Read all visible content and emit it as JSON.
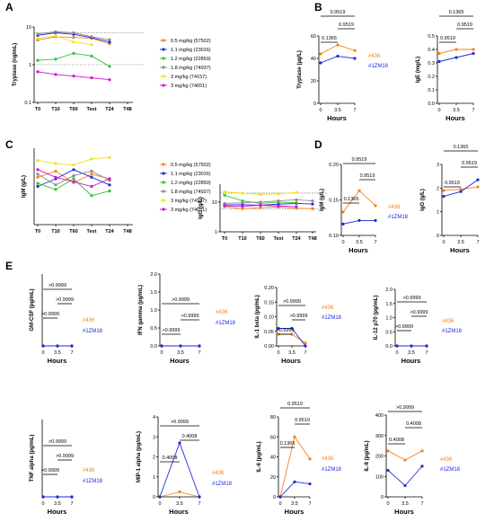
{
  "panel_labels": [
    "A",
    "B",
    "C",
    "D",
    "E"
  ],
  "colors": {
    "s57502": "#f5821f",
    "s23016": "#1f2bd6",
    "s22850": "#2ec42e",
    "s74937": "#8c8c8c",
    "s74157": "#f2e21b",
    "s74651": "#d60fd6",
    "s436": "#f5821f",
    "s1ZM18": "#1f2bd6"
  },
  "chart_data": [
    {
      "id": "A",
      "type": "line",
      "ylabel": "Tryptase (ng/mL)",
      "yscale": "log",
      "yticks": [
        "0.1",
        "1",
        "10"
      ],
      "ylim": [
        0.1,
        10
      ],
      "categories": [
        "T0",
        "T10",
        "T60",
        "Text",
        "T24",
        "T48"
      ],
      "series": [
        {
          "name": "0.5 mg/kg (57502)",
          "color": "#f5821f",
          "values": [
            4.5,
            5.5,
            5.3,
            5.0,
            3.6,
            null
          ]
        },
        {
          "name": "1.1 mg/kg (23016)",
          "color": "#1f2bd6",
          "values": [
            6.0,
            7.0,
            6.4,
            5.2,
            4.0,
            null
          ]
        },
        {
          "name": "1.2 mg/kg (22850)",
          "color": "#2ec42e",
          "values": [
            1.3,
            1.4,
            2.0,
            1.7,
            0.9,
            null
          ]
        },
        {
          "name": "1.8 mg/kg (74937)",
          "color": "#8c8c8c",
          "values": [
            6.5,
            7.5,
            7.0,
            5.5,
            4.6,
            null
          ]
        },
        {
          "name": "3 mg/kg (74157)",
          "color": "#f2e21b",
          "values": [
            5.0,
            5.8,
            4.0,
            3.4,
            null,
            null
          ]
        },
        {
          "name": "3 mg/kg (74651)",
          "color": "#d60fd6",
          "values": [
            0.65,
            0.55,
            0.5,
            0.45,
            0.4,
            null
          ]
        }
      ],
      "reflines": [
        1,
        7
      ],
      "legend": [
        {
          "label": "0.5 mg/kg (57502)",
          "color": "#f5821f"
        },
        {
          "label": "1.1 mg/kg (23016)",
          "color": "#1f2bd6"
        },
        {
          "label": "1.2 mg/kg (22850)",
          "color": "#2ec42e"
        },
        {
          "label": "1.8 mg/kg (74937)",
          "color": "#8c8c8c"
        },
        {
          "label": "3 mg/kg (74157)",
          "color": "#f2e21b"
        },
        {
          "label": "3 mg/kg (74651)",
          "color": "#d60fd6"
        }
      ]
    },
    {
      "id": "B1",
      "type": "line",
      "ylabel": "Tryptase (µg/L)",
      "xlabel": "Hours",
      "categories": [
        "0",
        "3.5",
        "7"
      ],
      "yticks": [
        "0",
        "20",
        "40",
        "60"
      ],
      "ylim": [
        0,
        60
      ],
      "series": [
        {
          "name": "#436",
          "color": "#f5821f",
          "values": [
            44,
            52,
            47
          ]
        },
        {
          "name": "#1ZM18",
          "color": "#1f2bd6",
          "values": [
            36,
            42,
            40
          ]
        }
      ],
      "brackets": [
        {
          "label": "0.9519",
          "from": 0,
          "to": 2
        },
        {
          "label": "0.9519",
          "from": 1,
          "to": 2
        },
        {
          "label": "0.1365",
          "from": 0,
          "to": 1
        }
      ],
      "legend": [
        {
          "label": "#436",
          "color": "#f5821f"
        },
        {
          "label": "#1ZM18",
          "color": "#1f2bd6"
        }
      ]
    },
    {
      "id": "B2",
      "type": "line",
      "ylabel": "IgE (mg/L)",
      "xlabel": "Hours",
      "categories": [
        "0",
        "3.5",
        "7"
      ],
      "yticks": [
        "0.0",
        "0.1",
        "0.2",
        "0.3",
        "0.4",
        "0.5"
      ],
      "ylim": [
        0,
        0.5
      ],
      "series": [
        {
          "name": "#436",
          "color": "#f5821f",
          "values": [
            0.37,
            0.4,
            0.4
          ]
        },
        {
          "name": "#1ZM18",
          "color": "#1f2bd6",
          "values": [
            0.31,
            0.34,
            0.37
          ]
        }
      ],
      "brackets": [
        {
          "label": "0.1365",
          "from": 0,
          "to": 2
        },
        {
          "label": "0.9519",
          "from": 1,
          "to": 2
        },
        {
          "label": "0.9519",
          "from": 0,
          "to": 1
        }
      ]
    },
    {
      "id": "C1",
      "type": "line",
      "ylabel": "IgM (g/L)",
      "categories": [
        "T0",
        "T10",
        "T60",
        "Text",
        "T24",
        "T48"
      ],
      "ylim": [
        0,
        1
      ],
      "series": [
        {
          "name": "0.5 mg/kg (57502)",
          "color": "#f5821f",
          "values": [
            0.62,
            0.7,
            0.55,
            0.66,
            0.6,
            null
          ]
        },
        {
          "name": "1.1 mg/kg (23016)",
          "color": "#1f2bd6",
          "values": [
            0.5,
            0.6,
            0.72,
            0.62,
            0.52,
            null
          ]
        },
        {
          "name": "1.2 mg/kg (22850)",
          "color": "#2ec42e",
          "values": [
            0.54,
            0.46,
            0.6,
            0.38,
            0.44,
            null
          ]
        },
        {
          "name": "1.8 mg/kg (74937)",
          "color": "#8c8c8c",
          "values": [
            0.66,
            0.52,
            0.64,
            0.7,
            0.58,
            null
          ]
        },
        {
          "name": "3 mg/kg (74157)",
          "color": "#f2e21b",
          "values": [
            0.84,
            0.8,
            0.78,
            0.86,
            0.88,
            null
          ]
        },
        {
          "name": "3 mg/kg (74651)",
          "color": "#d60fd6",
          "values": [
            0.72,
            0.62,
            0.56,
            0.5,
            0.6,
            null
          ]
        }
      ],
      "legend": [
        {
          "label": "0.5 mg/kg (57502)",
          "color": "#f5821f"
        },
        {
          "label": "1.1 mg/kg (23016)",
          "color": "#1f2bd6"
        },
        {
          "label": "1.2 mg/kg (22850)",
          "color": "#2ec42e"
        },
        {
          "label": "1.8 mg/kg (74937)",
          "color": "#8c8c8c"
        },
        {
          "label": "3 mg/kg (74157)",
          "color": "#f2e21b"
        },
        {
          "label": "3 mg/kg (74651)",
          "color": "#d60fd6"
        }
      ]
    },
    {
      "id": "C2",
      "type": "line",
      "ylabel": "IgG (g/L)",
      "yscale": "log",
      "categories": [
        "T0",
        "T10",
        "T60",
        "Text",
        "T24",
        "T48"
      ],
      "yticks": [
        "1",
        "10"
      ],
      "ylim": [
        1,
        40
      ],
      "series": [
        {
          "name": "0.5 mg/kg (57502)",
          "color": "#f5821f",
          "values": [
            7,
            6,
            6.5,
            6.8,
            6.2,
            6
          ]
        },
        {
          "name": "1.1 mg/kg (23016)",
          "color": "#1f2bd6",
          "values": [
            8,
            8.2,
            7.8,
            8.5,
            9,
            8.6
          ]
        },
        {
          "name": "1.2 mg/kg (22850)",
          "color": "#2ec42e",
          "values": [
            17,
            11,
            9,
            10,
            9.5,
            null
          ]
        },
        {
          "name": "1.8 mg/kg (74937)",
          "color": "#8c8c8c",
          "values": [
            9,
            9.5,
            10,
            11,
            12,
            11
          ]
        },
        {
          "name": "3 mg/kg (74157)",
          "color": "#f2e21b",
          "values": [
            22,
            20,
            18,
            19,
            21,
            null
          ]
        },
        {
          "name": "3 mg/kg (74651)",
          "color": "#d60fd6",
          "values": [
            7.5,
            7.2,
            7.8,
            7.4,
            7.0,
            null
          ]
        }
      ],
      "reflines": [
        6,
        20
      ]
    },
    {
      "id": "D1",
      "type": "line",
      "ylabel": "IgM (g/L)",
      "xlabel": "Hours",
      "categories": [
        "0",
        "3.5",
        "7"
      ],
      "yticks": [
        "0.10",
        "0.15",
        "0.20"
      ],
      "ylim": [
        0.1,
        0.2
      ],
      "series": [
        {
          "name": "#436",
          "color": "#f5821f",
          "values": [
            0.133,
            0.163,
            0.142
          ]
        },
        {
          "name": "#1ZM18",
          "color": "#1f2bd6",
          "values": [
            0.116,
            0.121,
            0.121
          ]
        }
      ],
      "brackets": [
        {
          "label": "0.9519",
          "from": 0,
          "to": 2
        },
        {
          "label": "0.9519",
          "from": 1,
          "to": 2
        },
        {
          "label": "0.1365",
          "from": 0,
          "to": 1
        }
      ],
      "legend": [
        {
          "label": "#436",
          "color": "#f5821f"
        },
        {
          "label": "#1ZM18",
          "color": "#1f2bd6"
        }
      ]
    },
    {
      "id": "D2",
      "type": "line",
      "ylabel": "IgG (g/L)",
      "xlabel": "Hours",
      "categories": [
        "0",
        "3.5",
        "7"
      ],
      "yticks": [
        "0",
        "1",
        "2",
        "3"
      ],
      "ylim": [
        0,
        3
      ],
      "series": [
        {
          "name": "#436",
          "color": "#f5821f",
          "values": [
            1.9,
            1.95,
            2.05
          ]
        },
        {
          "name": "#1ZM18",
          "color": "#1f2bd6",
          "values": [
            1.65,
            1.85,
            2.35
          ]
        }
      ],
      "brackets": [
        {
          "label": "0.1365",
          "from": 0,
          "to": 2
        },
        {
          "label": "0.9519",
          "from": 1,
          "to": 2
        },
        {
          "label": "0.9519",
          "from": 0,
          "to": 1
        }
      ]
    },
    {
      "id": "E1",
      "type": "line",
      "ylabel": "GM-CSF (pg/mL)",
      "xlabel": "Hours",
      "categories": [
        "0",
        "3.5",
        "7"
      ],
      "ylim": [
        0,
        10
      ],
      "series": [
        {
          "name": "#436",
          "color": "#f5821f",
          "values": [
            0,
            0,
            0
          ]
        },
        {
          "name": "#1ZM18",
          "color": "#1f2bd6",
          "values": [
            0,
            0,
            0
          ]
        }
      ],
      "brackets": [
        {
          "label": ">0.9999",
          "from": 0,
          "to": 2
        },
        {
          "label": ">0.9999",
          "from": 1,
          "to": 2
        },
        {
          "label": ">0.9999",
          "from": 0,
          "to": 1
        }
      ],
      "legend": [
        {
          "label": "#436",
          "color": "#f5821f"
        },
        {
          "label": "#1ZM18",
          "color": "#1f2bd6"
        }
      ]
    },
    {
      "id": "E2",
      "type": "line",
      "ylabel": "IFN gamma (pg/mL)",
      "xlabel": "Hours",
      "categories": [
        "0",
        "3.5",
        "7"
      ],
      "yticks": [
        "0.0",
        "0.5",
        "1.0",
        "1.5",
        "2.0"
      ],
      "ylim": [
        0,
        2
      ],
      "series": [
        {
          "name": "#436",
          "color": "#f5821f",
          "values": [
            0,
            0,
            0
          ]
        },
        {
          "name": "#1ZM18",
          "color": "#1f2bd6",
          "values": [
            0,
            0,
            0
          ]
        }
      ],
      "brackets": [
        {
          "label": ">0.9999",
          "from": 0,
          "to": 2
        },
        {
          "label": ">0.9999",
          "from": 1,
          "to": 2
        },
        {
          "label": ">0.9999",
          "from": 0,
          "to": 1
        }
      ],
      "legend": [
        {
          "label": "#436",
          "color": "#f5821f"
        },
        {
          "label": "#1ZM18",
          "color": "#1f2bd6"
        }
      ]
    },
    {
      "id": "E3",
      "type": "line",
      "ylabel": "IL-1 beta (pg/mL)",
      "xlabel": "Hours",
      "categories": [
        "0",
        "3.5",
        "7"
      ],
      "yticks": [
        "0.00",
        "0.05",
        "0.10",
        "0.15",
        "0.20"
      ],
      "ylim": [
        0,
        0.2
      ],
      "series": [
        {
          "name": "#436",
          "color": "#f5821f",
          "values": [
            0.04,
            0.04,
            0.01
          ]
        },
        {
          "name": "#1ZM18",
          "color": "#1f2bd6",
          "values": [
            0.06,
            0.06,
            0.0
          ]
        }
      ],
      "brackets": [
        {
          "label": ">0.9999",
          "from": 0,
          "to": 2
        },
        {
          "label": ">0.9999",
          "from": 1,
          "to": 2
        },
        {
          "label": ">0.9999",
          "from": 0,
          "to": 1
        }
      ],
      "legend": [
        {
          "label": "#436",
          "color": "#f5821f"
        },
        {
          "label": "#1ZM18",
          "color": "#1f2bd6"
        }
      ]
    },
    {
      "id": "E4",
      "type": "line",
      "ylabel": "IL-12 p70 (pg/mL)",
      "xlabel": "Hours",
      "categories": [
        "0",
        "3.5",
        "7"
      ],
      "yticks": [
        "0.0",
        "0.5",
        "1.0",
        "1.5",
        "2.0"
      ],
      "ylim": [
        0,
        2
      ],
      "series": [
        {
          "name": "#436",
          "color": "#f5821f",
          "values": [
            0,
            0,
            0
          ]
        },
        {
          "name": "#1ZM18",
          "color": "#1f2bd6",
          "values": [
            0,
            0,
            0
          ]
        }
      ],
      "brackets": [
        {
          "label": ">0.9999",
          "from": 0,
          "to": 2
        },
        {
          "label": ">0.9999",
          "from": 1,
          "to": 2
        },
        {
          "label": ">0.9999",
          "from": 0,
          "to": 1
        }
      ],
      "legend": [
        {
          "label": "#436",
          "color": "#f5821f"
        },
        {
          "label": "#1ZM18",
          "color": "#1f2bd6"
        }
      ]
    },
    {
      "id": "E5",
      "type": "line",
      "ylabel": "TNF alpha (pg/mL)",
      "xlabel": "Hours",
      "categories": [
        "0",
        "3.5",
        "7"
      ],
      "ylim": [
        0,
        10
      ],
      "series": [
        {
          "name": "#436",
          "color": "#f5821f",
          "values": [
            0,
            0,
            0
          ]
        },
        {
          "name": "#1ZM18",
          "color": "#1f2bd6",
          "values": [
            0,
            0,
            0
          ]
        }
      ],
      "brackets": [
        {
          "label": ">0.9999",
          "from": 0,
          "to": 2
        },
        {
          "label": ">0.9999",
          "from": 1,
          "to": 2
        },
        {
          "label": ">0.9999",
          "from": 0,
          "to": 1
        }
      ],
      "legend": [
        {
          "label": "#436",
          "color": "#f5821f"
        },
        {
          "label": "#1ZM18",
          "color": "#1f2bd6"
        }
      ]
    },
    {
      "id": "E6",
      "type": "line",
      "ylabel": "MIP-1 alpha (pg/mL)",
      "xlabel": "Hours",
      "categories": [
        "0",
        "3.5",
        "7"
      ],
      "yticks": [
        "0",
        "1",
        "2",
        "3",
        "4"
      ],
      "ylim": [
        0,
        4
      ],
      "series": [
        {
          "name": "#436",
          "color": "#f5821f",
          "values": [
            0,
            0.25,
            0
          ]
        },
        {
          "name": "#1ZM18",
          "color": "#1f2bd6",
          "values": [
            0,
            2.7,
            0
          ]
        }
      ],
      "brackets": [
        {
          "label": ">0.9999",
          "from": 0,
          "to": 2
        },
        {
          "label": "0.4008",
          "from": 1,
          "to": 2
        },
        {
          "label": "0.4008",
          "from": 0,
          "to": 1
        }
      ],
      "legend": [
        {
          "label": "#436",
          "color": "#f5821f"
        },
        {
          "label": "#1ZM18",
          "color": "#1f2bd6"
        }
      ]
    },
    {
      "id": "E7",
      "type": "line",
      "ylabel": "IL-6 (pg/mL)",
      "xlabel": "Hours",
      "categories": [
        "0",
        "3.5",
        "7"
      ],
      "yticks": [
        "0",
        "20",
        "40",
        "60",
        "80"
      ],
      "ylim": [
        0,
        80
      ],
      "series": [
        {
          "name": "#436",
          "color": "#f5821f",
          "values": [
            0,
            60,
            38
          ]
        },
        {
          "name": "#1ZM18",
          "color": "#1f2bd6",
          "values": [
            0,
            15,
            13
          ]
        }
      ],
      "brackets": [
        {
          "label": "0.9519",
          "from": 0,
          "to": 2
        },
        {
          "label": "0.9519",
          "from": 1,
          "to": 2
        },
        {
          "label": "0.1365",
          "from": 0,
          "to": 1
        }
      ],
      "legend": [
        {
          "label": "#436",
          "color": "#f5821f"
        },
        {
          "label": "#1ZM18",
          "color": "#1f2bd6"
        }
      ]
    },
    {
      "id": "E8",
      "type": "line",
      "ylabel": "IL-8 (pg/mL)",
      "xlabel": "Hours",
      "categories": [
        "0",
        "3.5",
        "7"
      ],
      "yticks": [
        "0",
        "100",
        "200",
        "300",
        "400"
      ],
      "ylim": [
        0,
        400
      ],
      "series": [
        {
          "name": "#436",
          "color": "#f5821f",
          "values": [
            225,
            180,
            225
          ]
        },
        {
          "name": "#1ZM18",
          "color": "#1f2bd6",
          "values": [
            130,
            55,
            150
          ]
        }
      ],
      "brackets": [
        {
          "label": ">0.9999",
          "from": 0,
          "to": 2
        },
        {
          "label": "0.4008",
          "from": 1,
          "to": 2
        },
        {
          "label": "0.4008",
          "from": 0,
          "to": 1
        }
      ],
      "legend": [
        {
          "label": "#436",
          "color": "#f5821f"
        },
        {
          "label": "#1ZM18",
          "color": "#1f2bd6"
        }
      ]
    }
  ]
}
